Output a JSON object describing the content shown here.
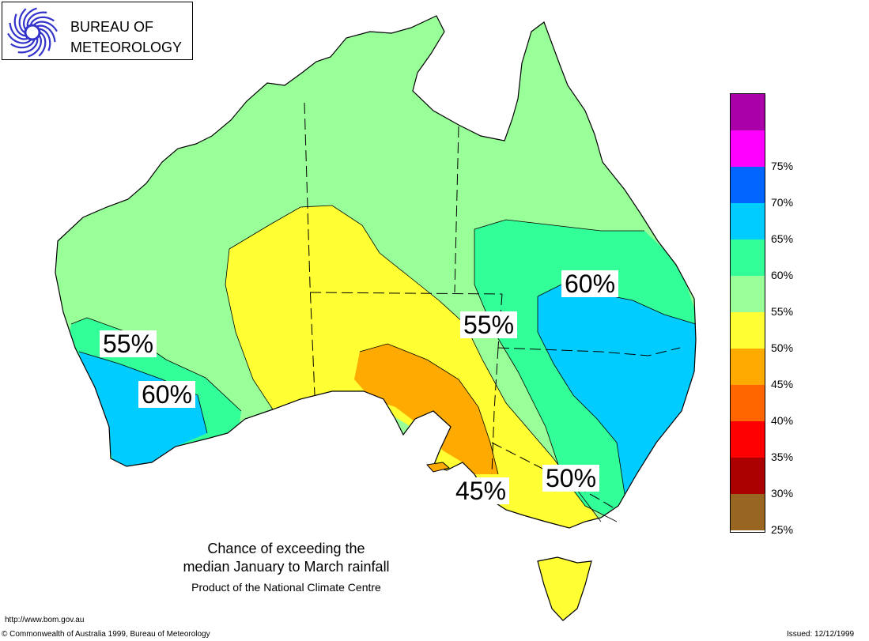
{
  "logo": {
    "line1": "BUREAU OF",
    "line2": "METEOROLOGY",
    "mark_icon": "bom-swirl-logo-icon",
    "mark_color": "#3333cc"
  },
  "regions": [
    {
      "name": "south-west-wa",
      "label": "60%",
      "color": "#00ccff"
    },
    {
      "name": "south-west-coastal",
      "label": "55%",
      "color": "#33ff99"
    },
    {
      "name": "central-australia",
      "label": "",
      "color": "#ffff33"
    },
    {
      "name": "spencer-gulf",
      "label": "45%",
      "color": "#ffaa00"
    },
    {
      "name": "eastern-australia",
      "label": "60%",
      "color": "#00ccff"
    },
    {
      "name": "inland-east",
      "label": "55%",
      "color": "#33ff99"
    },
    {
      "name": "south-east",
      "label": "50%",
      "color": "#99ff99"
    }
  ],
  "legend": {
    "items": [
      {
        "label": "",
        "color": "#aa00aa"
      },
      {
        "label": "75%",
        "color": "#ff00ff"
      },
      {
        "label": "70%",
        "color": "#0066ff"
      },
      {
        "label": "65%",
        "color": "#00ccff"
      },
      {
        "label": "60%",
        "color": "#33ff99"
      },
      {
        "label": "55%",
        "color": "#99ff99"
      },
      {
        "label": "50%",
        "color": "#ffff33"
      },
      {
        "label": "45%",
        "color": "#ffaa00"
      },
      {
        "label": "40%",
        "color": "#ff6600"
      },
      {
        "label": "35%",
        "color": "#ff0000"
      },
      {
        "label": "30%",
        "color": "#aa0000"
      },
      {
        "label": "25%",
        "color": "#996622"
      }
    ]
  },
  "caption": {
    "line1": "Chance of exceeding the",
    "line2": "median January to March rainfall",
    "line3": "Product of the National Climate Centre"
  },
  "footer": {
    "url": "http://www.bom.gov.au",
    "copyright": "© Commonwealth of Australia 1999, Bureau of Meteorology",
    "issued": "Issued: 12/12/1999"
  }
}
